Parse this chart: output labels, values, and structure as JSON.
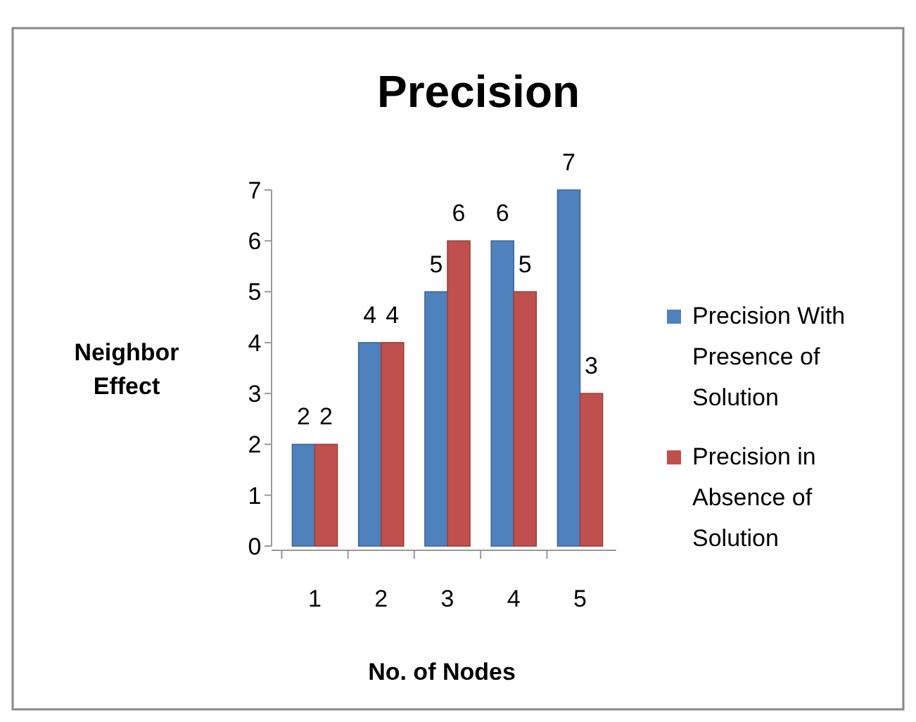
{
  "chart_data": {
    "type": "bar",
    "title": "Precision",
    "xlabel": "No. of Nodes",
    "ylabel": "Neighbor Effect",
    "categories": [
      "1",
      "2",
      "3",
      "4",
      "5"
    ],
    "series": [
      {
        "name": "Precision With Presence of Solution",
        "color": "#4f81bd",
        "values": [
          2,
          4,
          5,
          6,
          7
        ]
      },
      {
        "name": "Precision in Absence of Solution",
        "color": "#c0504d",
        "values": [
          2,
          4,
          6,
          5,
          3
        ]
      }
    ],
    "ylim": [
      0,
      7
    ],
    "yticks": [
      0,
      1,
      2,
      3,
      4,
      5,
      6,
      7
    ],
    "grid": false,
    "legend": "right",
    "data_labels": true
  }
}
